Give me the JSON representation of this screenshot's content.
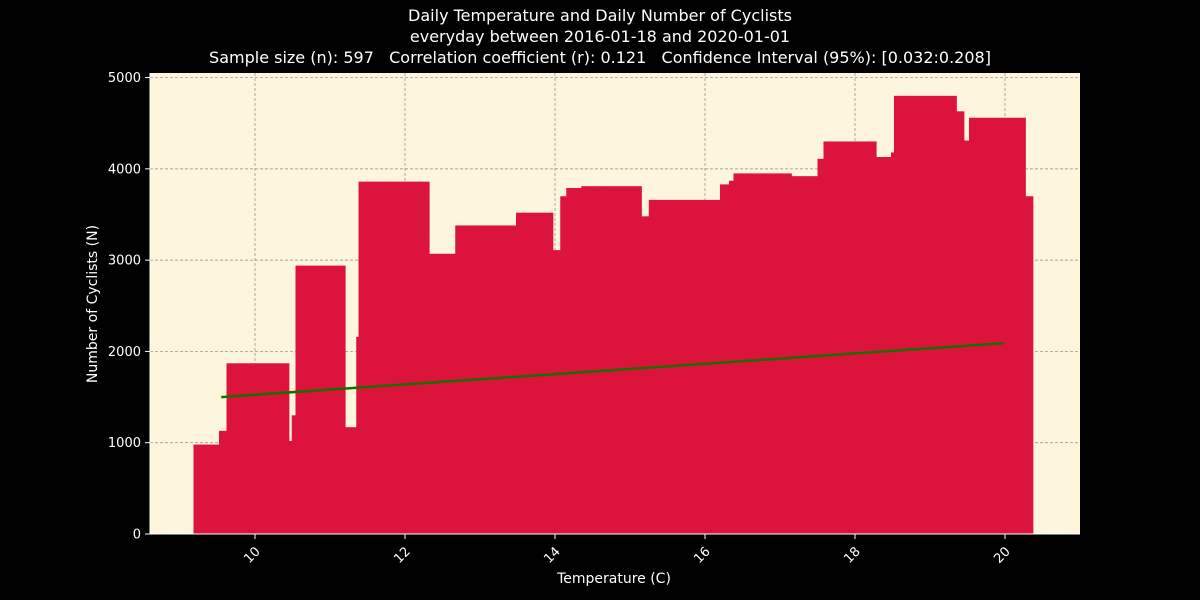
{
  "figure": {
    "background": "#000000",
    "title_lines": [
      "Daily Temperature and Daily Number of Cyclists",
      "everyday between 2016-01-18 and 2020-01-01",
      "Sample size (n): 597   Correlation coefficient (r): 0.121   Confidence Interval (95%): [0.032:0.208]"
    ]
  },
  "chart_data": {
    "type": "area",
    "title": "Daily Temperature and Daily Number of Cyclists",
    "subtitle": "everyday between 2016-01-18 and 2020-01-01",
    "stats": "Sample size (n): 597   Correlation coefficient (r): 0.121   Confidence Interval (95%): [0.032:0.208]",
    "xlabel": "Temperature (C)",
    "ylabel": "Number of Cyclists (N)",
    "xlim": [
      8.6,
      21.0
    ],
    "ylim": [
      0,
      5050
    ],
    "xticks": [
      10,
      12,
      14,
      16,
      18,
      20
    ],
    "yticks": [
      0,
      1000,
      2000,
      3000,
      4000,
      5000
    ],
    "grid": true,
    "plot_background": "#fdf6dc",
    "series": [
      {
        "kind": "step-area",
        "color": "#dc143c",
        "x": [
          9.18,
          9.52,
          9.62,
          9.95,
          10.45,
          10.49,
          10.54,
          10.6,
          11.2,
          11.35,
          11.38,
          11.55,
          11.73,
          12.32,
          12.67,
          12.98,
          13.48,
          13.97,
          14.07,
          14.15,
          14.23,
          14.35,
          14.45,
          14.6,
          15.15,
          15.25,
          15.43,
          15.77,
          16.2,
          16.32,
          16.38,
          16.48,
          16.6,
          17.15,
          17.5,
          17.58,
          17.62,
          18.28,
          18.48,
          18.52,
          18.67,
          19.35,
          19.45,
          19.52,
          19.68,
          20.27,
          20.37
        ],
        "y": [
          980,
          1130,
          1870,
          1870,
          1020,
          1300,
          2940,
          2940,
          1170,
          2160,
          3860,
          3860,
          3860,
          3070,
          3380,
          3380,
          3520,
          3110,
          3700,
          3790,
          3790,
          3810,
          3810,
          3810,
          3480,
          3660,
          3660,
          3660,
          3830,
          3870,
          3950,
          3950,
          3950,
          3920,
          4110,
          4300,
          4300,
          4130,
          4180,
          4800,
          4800,
          4630,
          4310,
          4560,
          4560,
          3700,
          3110
        ]
      },
      {
        "kind": "line",
        "name": "",
        "color": "#1a6b00",
        "x": [
          9.55,
          19.98
        ],
        "y": [
          1500,
          2090
        ]
      }
    ]
  }
}
